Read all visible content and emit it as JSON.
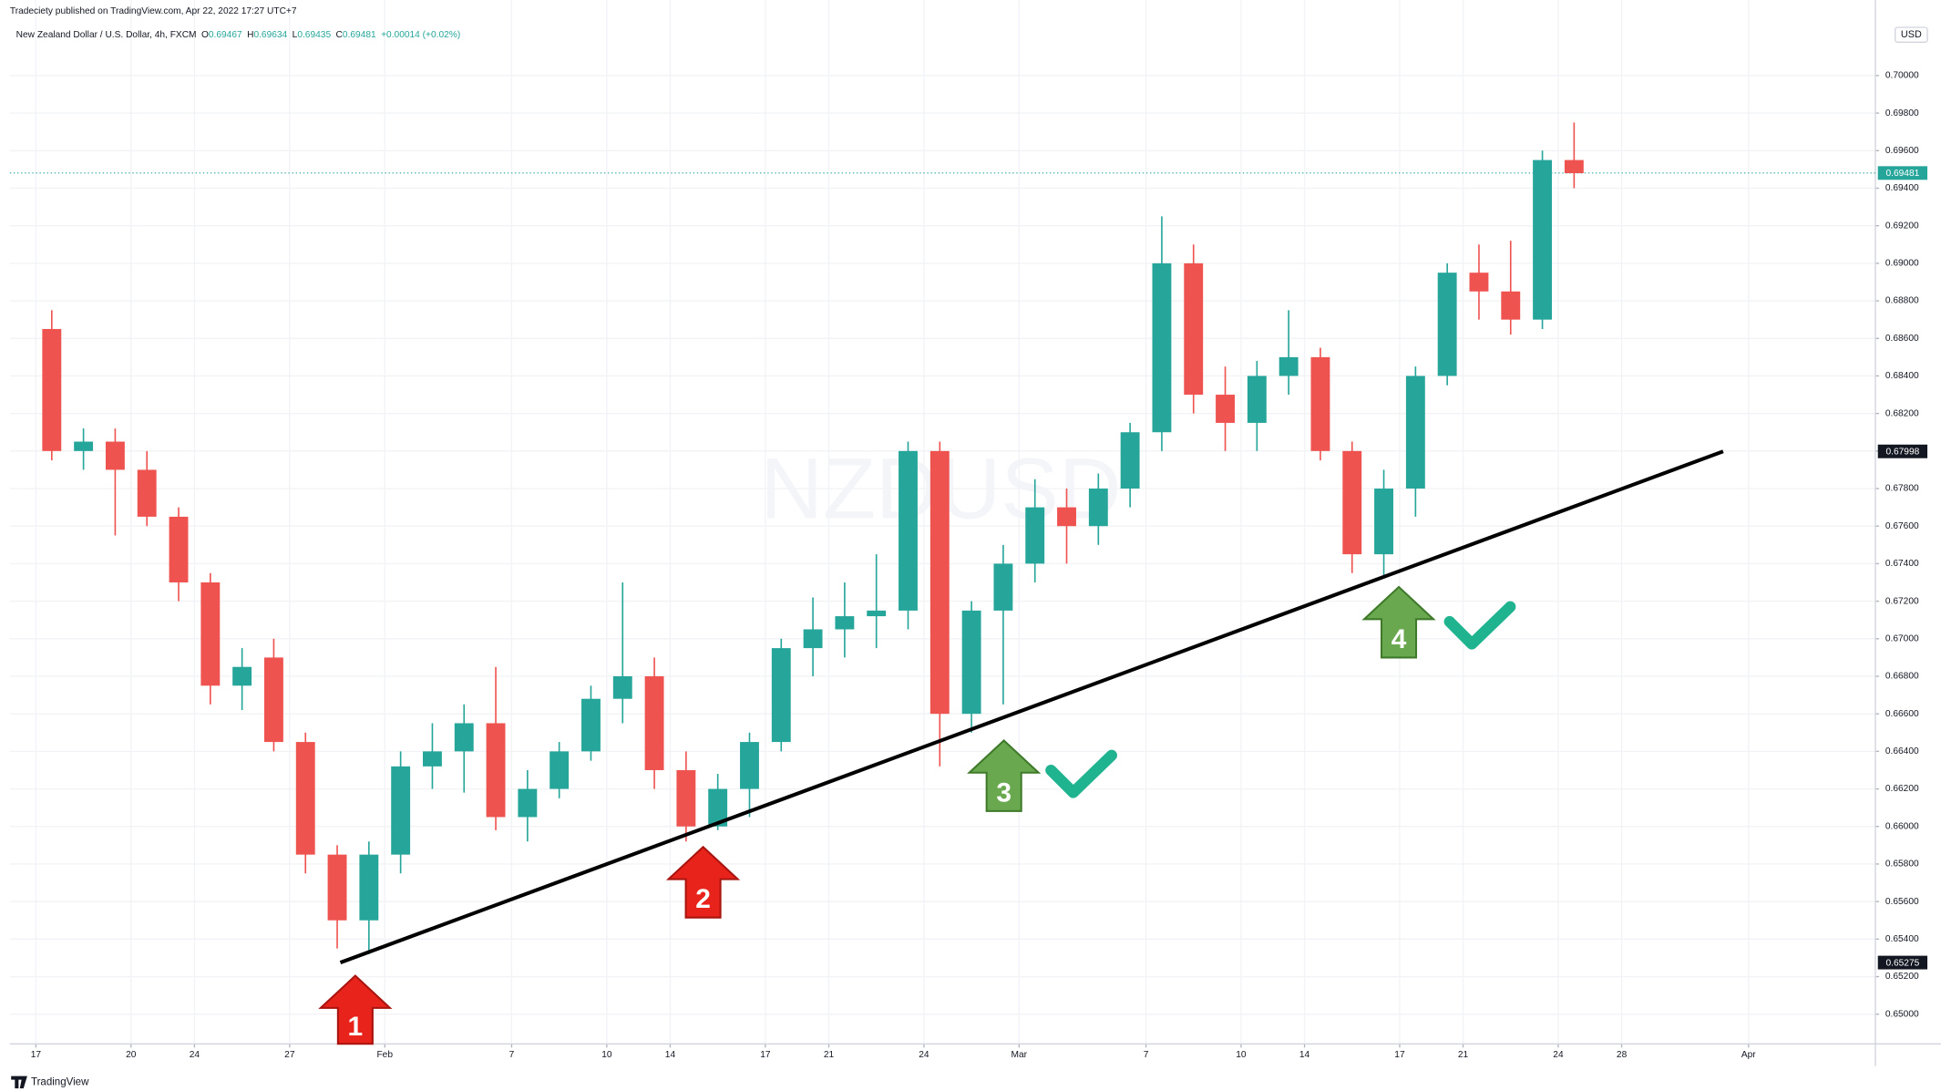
{
  "header": "Tradeciety published on TradingView.com, Apr 22, 2022 17:27 UTC+7",
  "footer": "TradingView",
  "chart_data": {
    "type": "candlestick",
    "title": "New Zealand Dollar / U.S. Dollar, 4h, FXCM",
    "ohlc_legend": [
      {
        "label": "O",
        "value": "0.69467"
      },
      {
        "label": "H",
        "value": "0.69634"
      },
      {
        "label": "L",
        "value": "0.69435"
      },
      {
        "label": "C",
        "value": "0.69481"
      }
    ],
    "change": "+0.00014 (+0.02%)",
    "watermark": "NZDUSD",
    "currency": "USD",
    "x": [
      0,
      1,
      2,
      3,
      4,
      5,
      6,
      7,
      8,
      9,
      10,
      11,
      12,
      13,
      14,
      15,
      16,
      17,
      18,
      19,
      20,
      21,
      22,
      23,
      24,
      25,
      26,
      27,
      28,
      29,
      30,
      31,
      32,
      33,
      34,
      35,
      36,
      37,
      38,
      39,
      40,
      41,
      42,
      43,
      44,
      45,
      46,
      47,
      48
    ],
    "open": [
      0.6865,
      0.68,
      0.6805,
      0.679,
      0.6765,
      0.673,
      0.6675,
      0.669,
      0.6645,
      0.6585,
      0.655,
      0.6585,
      0.6632,
      0.664,
      0.6655,
      0.6605,
      0.662,
      0.664,
      0.6668,
      0.668,
      0.663,
      0.66,
      0.662,
      0.6645,
      0.6695,
      0.6705,
      0.6712,
      0.6715,
      0.68,
      0.666,
      0.6715,
      0.674,
      0.677,
      0.676,
      0.678,
      0.681,
      0.69,
      0.683,
      0.6815,
      0.684,
      0.685,
      0.68,
      0.6745,
      0.678,
      0.684,
      0.6895,
      0.6885,
      0.687,
      0.6955
    ],
    "high": [
      0.6875,
      0.6812,
      0.6812,
      0.68,
      0.677,
      0.6735,
      0.6695,
      0.67,
      0.665,
      0.659,
      0.6592,
      0.664,
      0.6655,
      0.6665,
      0.6685,
      0.663,
      0.6645,
      0.6675,
      0.673,
      0.669,
      0.664,
      0.6628,
      0.665,
      0.67,
      0.6722,
      0.673,
      0.6745,
      0.6805,
      0.6805,
      0.672,
      0.675,
      0.6785,
      0.678,
      0.6788,
      0.6815,
      0.6925,
      0.691,
      0.6845,
      0.6848,
      0.6875,
      0.6855,
      0.6805,
      0.679,
      0.6845,
      0.69,
      0.691,
      0.6912,
      0.696,
      0.6975
    ],
    "low": [
      0.6795,
      0.679,
      0.6755,
      0.676,
      0.672,
      0.6665,
      0.6662,
      0.664,
      0.6575,
      0.6535,
      0.6532,
      0.6575,
      0.662,
      0.6618,
      0.6598,
      0.6592,
      0.6615,
      0.6635,
      0.6655,
      0.662,
      0.6592,
      0.6598,
      0.6605,
      0.664,
      0.668,
      0.669,
      0.6695,
      0.6705,
      0.6632,
      0.665,
      0.6665,
      0.673,
      0.674,
      0.675,
      0.677,
      0.68,
      0.682,
      0.68,
      0.68,
      0.683,
      0.6795,
      0.6735,
      0.6732,
      0.6765,
      0.6835,
      0.687,
      0.6862,
      0.6865,
      0.694
    ],
    "close": [
      0.68,
      0.6805,
      0.679,
      0.6765,
      0.673,
      0.6675,
      0.6685,
      0.6645,
      0.6585,
      0.655,
      0.6585,
      0.6632,
      0.664,
      0.6655,
      0.6605,
      0.662,
      0.664,
      0.6668,
      0.668,
      0.663,
      0.66,
      0.662,
      0.6645,
      0.6695,
      0.6705,
      0.6712,
      0.6715,
      0.68,
      0.666,
      0.6715,
      0.674,
      0.677,
      0.676,
      0.678,
      0.681,
      0.69,
      0.683,
      0.6815,
      0.684,
      0.685,
      0.68,
      0.6745,
      0.678,
      0.684,
      0.6895,
      0.6885,
      0.687,
      0.6955,
      0.6948
    ],
    "up_color": "#26a69a",
    "down_color": "#ef5350",
    "xlim": [
      -0.82,
      58
    ],
    "ylim": [
      0.64842,
      0.70402
    ],
    "xticks": [
      {
        "value": 0,
        "label": "17"
      },
      {
        "value": 3,
        "label": "20"
      },
      {
        "value": 5,
        "label": "24"
      },
      {
        "value": 8,
        "label": "27"
      },
      {
        "value": 11,
        "label": "Feb"
      },
      {
        "value": 15,
        "label": "7"
      },
      {
        "value": 18,
        "label": "10"
      },
      {
        "value": 20,
        "label": "14"
      },
      {
        "value": 23,
        "label": "17"
      },
      {
        "value": 25,
        "label": "21"
      },
      {
        "value": 28,
        "label": "24"
      },
      {
        "value": 31,
        "label": "Mar"
      },
      {
        "value": 35,
        "label": "7"
      },
      {
        "value": 38,
        "label": "10"
      },
      {
        "value": 40,
        "label": "14"
      },
      {
        "value": 43,
        "label": "17"
      },
      {
        "value": 45,
        "label": "21"
      },
      {
        "value": 48,
        "label": "24"
      },
      {
        "value": 50,
        "label": "28"
      },
      {
        "value": 54,
        "label": "Apr"
      }
    ],
    "yticks": [
      {
        "value": 0.65,
        "label": "0.65000"
      },
      {
        "value": 0.652,
        "label": "0.65200"
      },
      {
        "value": 0.654,
        "label": "0.65400"
      },
      {
        "value": 0.656,
        "label": "0.65600"
      },
      {
        "value": 0.658,
        "label": "0.65800"
      },
      {
        "value": 0.66,
        "label": "0.66000"
      },
      {
        "value": 0.662,
        "label": "0.66200"
      },
      {
        "value": 0.664,
        "label": "0.66400"
      },
      {
        "value": 0.666,
        "label": "0.66600"
      },
      {
        "value": 0.668,
        "label": "0.66800"
      },
      {
        "value": 0.67,
        "label": "0.67000"
      },
      {
        "value": 0.672,
        "label": "0.67200"
      },
      {
        "value": 0.674,
        "label": "0.67400"
      },
      {
        "value": 0.676,
        "label": "0.67600"
      },
      {
        "value": 0.678,
        "label": "0.67800"
      },
      {
        "value": 0.68,
        "label": "0.68000"
      },
      {
        "value": 0.682,
        "label": "0.68200"
      },
      {
        "value": 0.684,
        "label": "0.68400"
      },
      {
        "value": 0.686,
        "label": "0.68600"
      },
      {
        "value": 0.688,
        "label": "0.68800"
      },
      {
        "value": 0.69,
        "label": "0.69000"
      },
      {
        "value": 0.692,
        "label": "0.69200"
      },
      {
        "value": 0.694,
        "label": "0.69400"
      },
      {
        "value": 0.696,
        "label": "0.69600"
      },
      {
        "value": 0.698,
        "label": "0.69800"
      },
      {
        "value": 0.7,
        "label": "0.70000"
      }
    ],
    "last_price": {
      "value": 0.69481,
      "label": "0.69481"
    },
    "trendline": {
      "x": [
        9.6,
        53.2
      ],
      "y": [
        {
          "value": 0.65275,
          "label": "0.65275"
        },
        {
          "value": 0.67998,
          "label": "0.67998"
        }
      ]
    },
    "annotations": [
      "1",
      "2",
      "3",
      "4"
    ],
    "grid": true
  }
}
